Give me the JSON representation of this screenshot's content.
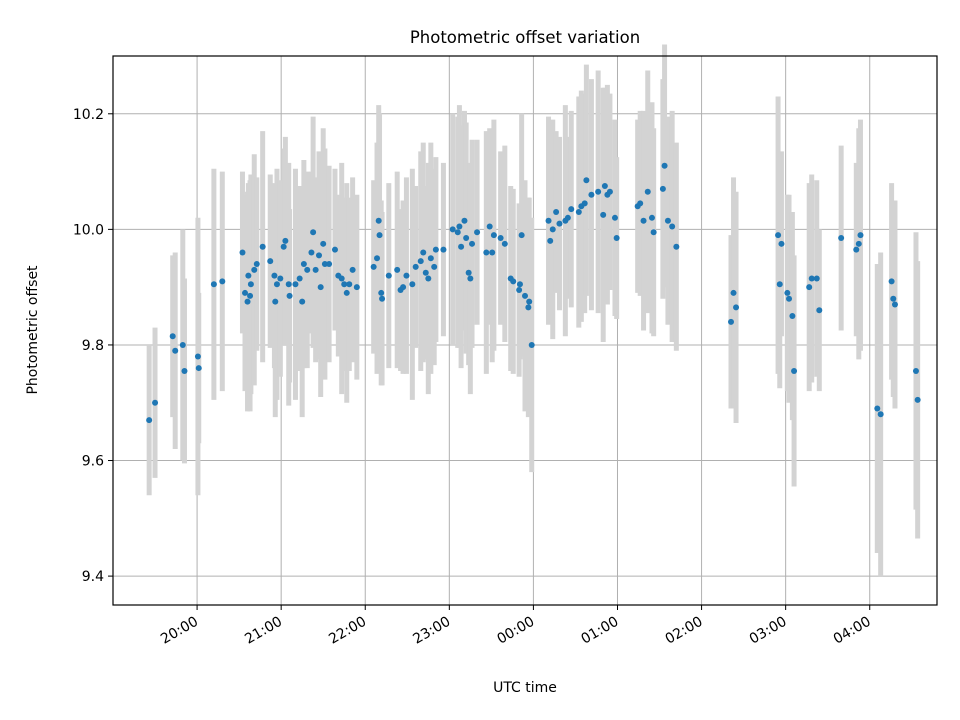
{
  "chart_data": {
    "type": "scatter",
    "title": "Photometric offset variation",
    "xlabel": "UTC time",
    "ylabel": "Photometric offset",
    "x_unit": "hours after 19:00 UTC",
    "xlim": [
      0.0,
      9.8
    ],
    "ylim": [
      9.35,
      10.3
    ],
    "x_ticks": [
      {
        "v": 1,
        "label": "20:00"
      },
      {
        "v": 2,
        "label": "21:00"
      },
      {
        "v": 3,
        "label": "22:00"
      },
      {
        "v": 4,
        "label": "23:00"
      },
      {
        "v": 5,
        "label": "00:00"
      },
      {
        "v": 6,
        "label": "01:00"
      },
      {
        "v": 7,
        "label": "02:00"
      },
      {
        "v": 8,
        "label": "03:00"
      },
      {
        "v": 9,
        "label": "04:00"
      }
    ],
    "y_ticks": [
      9.4,
      9.6,
      9.8,
      10.0,
      10.2
    ],
    "grid": true,
    "colors": {
      "points": "#1f77b4",
      "errorbars": "#d3d3d3",
      "grid": "#b0b0b0"
    },
    "series": [
      {
        "values": [
          [
            0.43,
            9.67,
            0.13
          ],
          [
            0.5,
            9.7,
            0.13
          ],
          [
            0.71,
            9.815,
            0.14
          ],
          [
            0.74,
            9.79,
            0.17
          ],
          [
            0.83,
            9.8,
            0.2
          ],
          [
            0.85,
            9.755,
            0.16
          ],
          [
            1.01,
            9.78,
            0.24
          ],
          [
            1.02,
            9.76,
            0.13
          ],
          [
            1.2,
            9.905,
            0.2
          ],
          [
            1.3,
            9.91,
            0.19
          ],
          [
            1.54,
            9.96,
            0.14
          ],
          [
            1.57,
            9.89,
            0.17
          ],
          [
            1.6,
            9.875,
            0.19
          ],
          [
            1.61,
            9.92,
            0.16
          ],
          [
            1.63,
            9.885,
            0.2
          ],
          [
            1.64,
            9.905,
            0.19
          ],
          [
            1.68,
            9.93,
            0.2
          ],
          [
            1.71,
            9.94,
            0.15
          ],
          [
            1.78,
            9.97,
            0.2
          ],
          [
            1.87,
            9.945,
            0.15
          ],
          [
            1.92,
            9.92,
            0.16
          ],
          [
            1.93,
            9.875,
            0.2
          ],
          [
            1.95,
            9.905,
            0.2
          ],
          [
            1.99,
            9.915,
            0.17
          ],
          [
            2.03,
            9.97,
            0.17
          ],
          [
            2.05,
            9.98,
            0.18
          ],
          [
            2.09,
            9.905,
            0.21
          ],
          [
            2.1,
            9.885,
            0.15
          ],
          [
            2.17,
            9.905,
            0.2
          ],
          [
            2.22,
            9.915,
            0.16
          ],
          [
            2.25,
            9.875,
            0.2
          ],
          [
            2.27,
            9.94,
            0.18
          ],
          [
            2.31,
            9.93,
            0.17
          ],
          [
            2.36,
            9.96,
            0.14
          ],
          [
            2.38,
            9.995,
            0.2
          ],
          [
            2.41,
            9.93,
            0.16
          ],
          [
            2.45,
            9.955,
            0.18
          ],
          [
            2.47,
            9.9,
            0.19
          ],
          [
            2.5,
            9.975,
            0.2
          ],
          [
            2.52,
            9.94,
            0.2
          ],
          [
            2.57,
            9.94,
            0.17
          ],
          [
            2.64,
            9.965,
            0.14
          ],
          [
            2.68,
            9.92,
            0.14
          ],
          [
            2.72,
            9.915,
            0.2
          ],
          [
            2.75,
            9.905,
            0.15
          ],
          [
            2.78,
            9.89,
            0.19
          ],
          [
            2.81,
            9.905,
            0.15
          ],
          [
            2.85,
            9.93,
            0.16
          ],
          [
            2.9,
            9.9,
            0.16
          ],
          [
            3.1,
            9.935,
            0.15
          ],
          [
            3.14,
            9.95,
            0.2
          ],
          [
            3.16,
            10.015,
            0.2
          ],
          [
            3.17,
            9.99,
            0.21
          ],
          [
            3.19,
            9.89,
            0.16
          ],
          [
            3.2,
            9.88,
            0.15
          ],
          [
            3.28,
            9.92,
            0.16
          ],
          [
            3.38,
            9.93,
            0.17
          ],
          [
            3.42,
            9.895,
            0.14
          ],
          [
            3.45,
            9.9,
            0.15
          ],
          [
            3.49,
            9.92,
            0.17
          ],
          [
            3.56,
            9.905,
            0.2
          ],
          [
            3.6,
            9.935,
            0.14
          ],
          [
            3.66,
            9.945,
            0.19
          ],
          [
            3.69,
            9.96,
            0.19
          ],
          [
            3.72,
            9.925,
            0.15
          ],
          [
            3.75,
            9.915,
            0.2
          ],
          [
            3.78,
            9.95,
            0.2
          ],
          [
            3.82,
            9.935,
            0.17
          ],
          [
            3.84,
            9.965,
            0.16
          ],
          [
            3.93,
            9.965,
            0.15
          ],
          [
            4.04,
            10.0,
            0.2
          ],
          [
            4.1,
            9.995,
            0.2
          ],
          [
            4.12,
            10.005,
            0.21
          ],
          [
            4.14,
            9.97,
            0.21
          ],
          [
            4.18,
            10.015,
            0.19
          ],
          [
            4.2,
            9.985,
            0.2
          ],
          [
            4.23,
            9.925,
            0.16
          ],
          [
            4.25,
            9.915,
            0.2
          ],
          [
            4.27,
            9.975,
            0.18
          ],
          [
            4.33,
            9.995,
            0.16
          ],
          [
            4.44,
            9.96,
            0.21
          ],
          [
            4.48,
            10.005,
            0.17
          ],
          [
            4.51,
            9.96,
            0.19
          ],
          [
            4.53,
            9.99,
            0.2
          ],
          [
            4.61,
            9.985,
            0.15
          ],
          [
            4.66,
            9.975,
            0.17
          ],
          [
            4.73,
            9.915,
            0.16
          ],
          [
            4.76,
            9.91,
            0.16
          ],
          [
            4.83,
            9.895,
            0.15
          ],
          [
            4.84,
            9.905,
            0.13
          ],
          [
            4.86,
            9.99,
            0.21
          ],
          [
            4.9,
            9.885,
            0.2
          ],
          [
            4.94,
            9.865,
            0.19
          ],
          [
            4.95,
            9.875,
            0.18
          ],
          [
            4.98,
            9.8,
            0.22
          ],
          [
            5.18,
            10.015,
            0.18
          ],
          [
            5.2,
            9.98,
            0.14
          ],
          [
            5.23,
            10.0,
            0.19
          ],
          [
            5.27,
            10.03,
            0.14
          ],
          [
            5.31,
            10.01,
            0.15
          ],
          [
            5.38,
            10.015,
            0.2
          ],
          [
            5.41,
            10.02,
            0.14
          ],
          [
            5.45,
            10.035,
            0.17
          ],
          [
            5.54,
            10.03,
            0.2
          ],
          [
            5.57,
            10.04,
            0.2
          ],
          [
            5.61,
            10.045,
            0.19
          ],
          [
            5.63,
            10.085,
            0.2
          ],
          [
            5.69,
            10.06,
            0.2
          ],
          [
            5.77,
            10.065,
            0.21
          ],
          [
            5.83,
            10.025,
            0.22
          ],
          [
            5.85,
            10.075,
            0.17
          ],
          [
            5.88,
            10.06,
            0.19
          ],
          [
            5.91,
            10.065,
            0.17
          ],
          [
            5.97,
            10.02,
            0.17
          ],
          [
            5.99,
            9.985,
            0.14
          ],
          [
            6.24,
            10.04,
            0.15
          ],
          [
            6.27,
            10.045,
            0.16
          ],
          [
            6.31,
            10.015,
            0.19
          ],
          [
            6.36,
            10.065,
            0.21
          ],
          [
            6.41,
            10.02,
            0.2
          ],
          [
            6.43,
            9.995,
            0.18
          ],
          [
            6.54,
            10.07,
            0.19
          ],
          [
            6.56,
            10.11,
            0.21
          ],
          [
            6.6,
            10.015,
            0.18
          ],
          [
            6.65,
            10.005,
            0.2
          ],
          [
            6.7,
            9.97,
            0.18
          ],
          [
            7.35,
            9.84,
            0.15
          ],
          [
            7.38,
            9.89,
            0.2
          ],
          [
            7.41,
            9.865,
            0.2
          ],
          [
            7.91,
            9.99,
            0.24
          ],
          [
            7.93,
            9.905,
            0.18
          ],
          [
            7.95,
            9.975,
            0.16
          ],
          [
            8.02,
            9.89,
            0.17
          ],
          [
            8.04,
            9.88,
            0.18
          ],
          [
            8.08,
            9.85,
            0.18
          ],
          [
            8.1,
            9.755,
            0.2
          ],
          [
            8.28,
            9.9,
            0.18
          ],
          [
            8.31,
            9.915,
            0.18
          ],
          [
            8.37,
            9.915,
            0.17
          ],
          [
            8.4,
            9.86,
            0.14
          ],
          [
            8.66,
            9.985,
            0.16
          ],
          [
            8.84,
            9.965,
            0.15
          ],
          [
            8.87,
            9.975,
            0.2
          ],
          [
            8.89,
            9.99,
            0.2
          ],
          [
            9.09,
            9.69,
            0.25
          ],
          [
            9.13,
            9.68,
            0.28
          ],
          [
            9.26,
            9.91,
            0.17
          ],
          [
            9.28,
            9.88,
            0.17
          ],
          [
            9.3,
            9.87,
            0.18
          ],
          [
            9.55,
            9.755,
            0.24
          ],
          [
            9.57,
            9.705,
            0.24
          ]
        ]
      }
    ]
  }
}
